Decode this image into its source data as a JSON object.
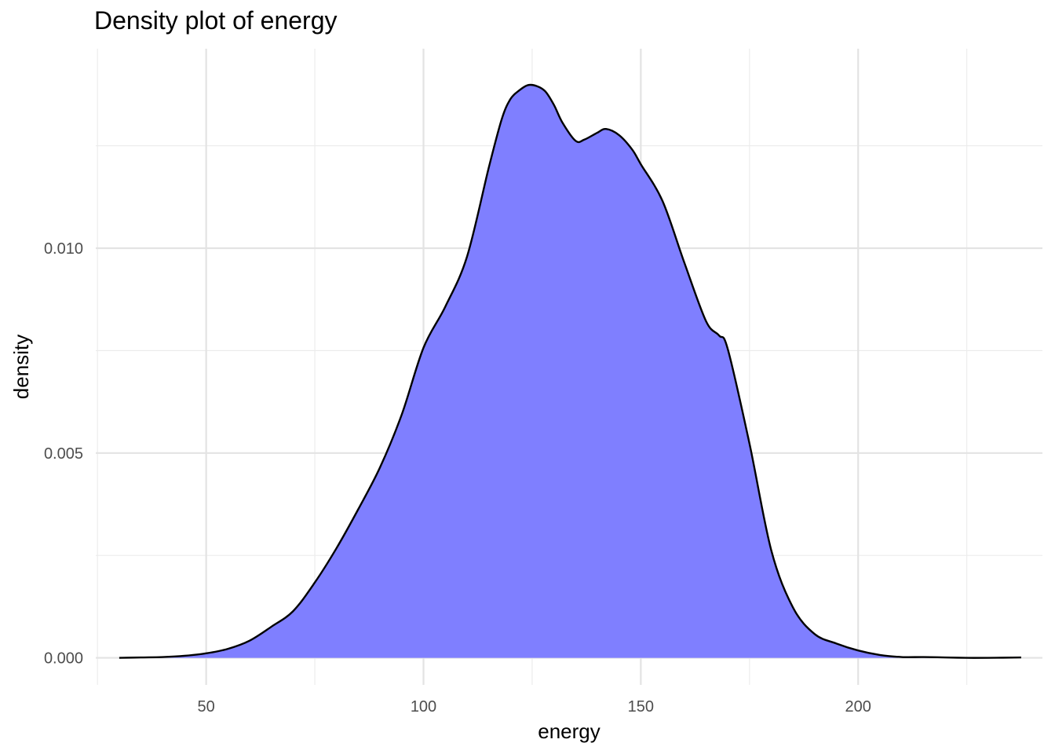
{
  "chart_data": {
    "type": "area",
    "title": "Density plot of energy",
    "xlabel": "energy",
    "ylabel": "density",
    "xlim": [
      24.6,
      242.4
    ],
    "ylim": [
      -0.00066,
      0.01487
    ],
    "x_breaks": [
      50,
      100,
      150,
      200
    ],
    "x_minor_breaks": [
      25,
      75,
      125,
      175,
      225
    ],
    "x_tick_labels": [
      "50",
      "100",
      "150",
      "200"
    ],
    "y_breaks": [
      0.0,
      0.005,
      0.01
    ],
    "y_minor_breaks": [
      0.0025,
      0.0075,
      0.0125
    ],
    "y_tick_labels": [
      "0.000",
      "0.005",
      "0.010"
    ],
    "grid": true,
    "legend": "none",
    "series": [
      {
        "fill": "#7f7fff",
        "stroke": "#000000",
        "x": [
          30.0,
          35.0,
          40.0,
          45.0,
          50.0,
          55.0,
          60.0,
          65.0,
          70.0,
          75.0,
          80.0,
          85.0,
          90.0,
          95.0,
          100.0,
          105.0,
          110.0,
          115.0,
          118.0,
          120.0,
          122.0,
          124.0,
          126.0,
          128.0,
          130.0,
          132.0,
          135.0,
          137.0,
          140.0,
          142.0,
          145.0,
          148.0,
          150.0,
          155.0,
          160.0,
          165.0,
          168.0,
          170.0,
          175.0,
          180.0,
          185.0,
          190.0,
          195.0,
          200.0,
          205.0,
          210.0,
          215.0,
          220.0,
          225.0,
          230.0,
          237.5
        ],
        "y": [
          0.0,
          1e-05,
          2e-05,
          5e-05,
          0.00011,
          0.00022,
          0.00042,
          0.00076,
          0.00114,
          0.00184,
          0.00268,
          0.00363,
          0.00465,
          0.00594,
          0.00757,
          0.00857,
          0.00979,
          0.01196,
          0.01315,
          0.01364,
          0.01385,
          0.01398,
          0.01396,
          0.01383,
          0.0135,
          0.01306,
          0.01262,
          0.01265,
          0.01282,
          0.01291,
          0.01276,
          0.01241,
          0.01205,
          0.01115,
          0.00965,
          0.00822,
          0.00787,
          0.00754,
          0.00523,
          0.00263,
          0.00123,
          0.00058,
          0.00035,
          0.00018,
          7e-05,
          2e-05,
          2e-05,
          1e-05,
          0.0,
          0.0,
          1e-05
        ]
      }
    ]
  }
}
